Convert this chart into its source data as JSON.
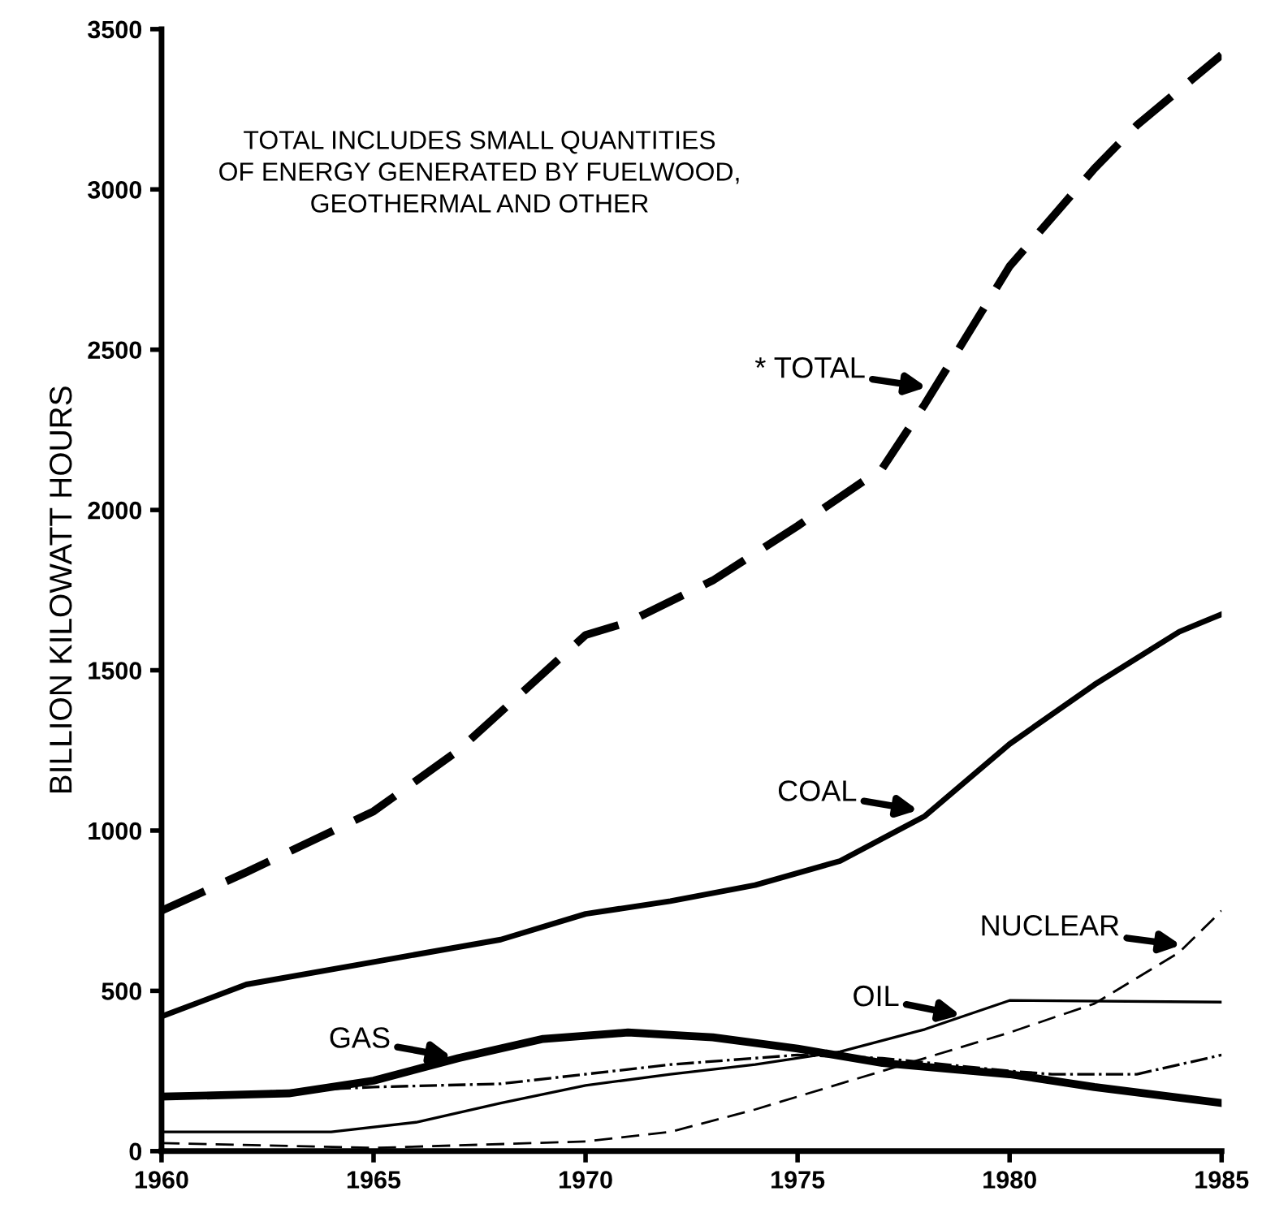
{
  "chart_data": {
    "type": "line",
    "ylabel": "BILLION KILOWATT HOURS",
    "xlim": [
      1960,
      1985
    ],
    "ylim": [
      0,
      3500
    ],
    "xticks": [
      1960,
      1965,
      1970,
      1975,
      1980,
      1985
    ],
    "yticks": [
      0,
      500,
      1000,
      1500,
      2000,
      2500,
      3000,
      3500
    ],
    "grid": false,
    "legend": false,
    "marker": "none",
    "series": [
      {
        "color": "#000000",
        "line_style": "dashed",
        "x": [
          1960,
          1962,
          1965,
          1967,
          1970,
          1971,
          1973,
          1975,
          1977,
          1978,
          1980,
          1982,
          1983,
          1985
        ],
        "values": [
          750,
          870,
          1060,
          1250,
          1610,
          1650,
          1780,
          1950,
          2130,
          2330,
          2760,
          3065,
          3200,
          3420
        ]
      },
      {
        "color": "#000000",
        "line_style": "solid",
        "x": [
          1960,
          1962,
          1965,
          1968,
          1970,
          1972,
          1974,
          1976,
          1978,
          1980,
          1982,
          1984,
          1985
        ],
        "values": [
          420,
          520,
          590,
          660,
          740,
          780,
          830,
          905,
          1045,
          1270,
          1455,
          1620,
          1675
        ]
      },
      {
        "color": "#000000",
        "line_style": "solid",
        "x": [
          1960,
          1963,
          1965,
          1967,
          1969,
          1971,
          1973,
          1975,
          1977,
          1980,
          1982,
          1985
        ],
        "values": [
          170,
          180,
          220,
          290,
          350,
          370,
          355,
          320,
          275,
          240,
          200,
          150
        ]
      },
      {
        "color": "#000000",
        "line_style": "solid",
        "x": [
          1960,
          1964,
          1966,
          1968,
          1970,
          1972,
          1974,
          1976,
          1978,
          1980,
          1985
        ],
        "values": [
          60,
          60,
          90,
          150,
          205,
          240,
          270,
          310,
          380,
          470,
          465
        ]
      },
      {
        "color": "#000000",
        "line_style": "dashdot",
        "x": [
          1960,
          1965,
          1968,
          1972,
          1975,
          1977,
          1980,
          1981,
          1983,
          1985
        ],
        "values": [
          170,
          200,
          210,
          270,
          300,
          290,
          250,
          240,
          240,
          300
        ]
      },
      {
        "color": "#000000",
        "line_style": "dashed",
        "x": [
          1960,
          1965,
          1970,
          1972,
          1974,
          1976,
          1978,
          1980,
          1982,
          1984,
          1985
        ],
        "values": [
          25,
          10,
          30,
          60,
          130,
          210,
          290,
          370,
          460,
          620,
          750
        ]
      }
    ],
    "annotations": [
      "TOTAL INCLUDES SMALL QUANTITIES\nOF ENERGY GENERATED BY FUELWOOD,\nGEOTHERMAL AND OTHER",
      {
        "text": "* TOTAL",
        "x": 1978.2,
        "y": 2380
      },
      {
        "text": "COAL",
        "x": 1978,
        "y": 1060
      },
      {
        "text": "GAS",
        "x": 1967,
        "y": 290
      },
      {
        "text": "OIL",
        "x": 1979,
        "y": 420
      },
      {
        "text": "NUCLEAR",
        "x": 1984.2,
        "y": 640
      }
    ]
  }
}
